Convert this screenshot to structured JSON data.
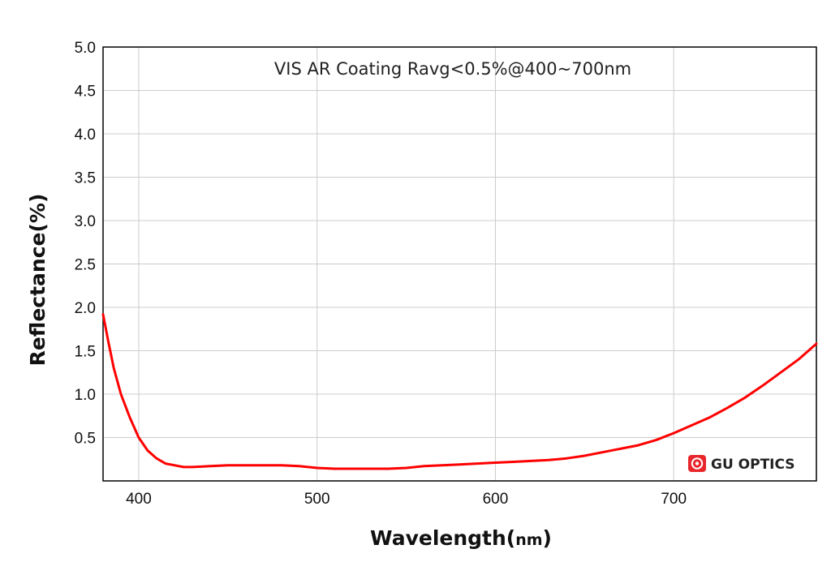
{
  "chart_data": {
    "type": "line",
    "title": "VIS AR Coating Ravg<0.5%@400~700nm",
    "xlabel": "Wavelength(",
    "xlabel_unit": "nm",
    "xlabel_close": ")",
    "ylabel": "Reflectance(%)",
    "xlim": [
      380,
      780
    ],
    "ylim": [
      0,
      5
    ],
    "xticks": [
      400,
      500,
      600,
      700
    ],
    "yticks": [
      0.5,
      1.0,
      1.5,
      2.0,
      2.5,
      3.0,
      3.5,
      4.0,
      4.5,
      5.0
    ],
    "ytick_labels": [
      "0.5",
      "1.0",
      "1.5",
      "2.0",
      "2.5",
      "3.0",
      "3.5",
      "4.0",
      "4.5",
      "5.0"
    ],
    "grid": true,
    "series": [
      {
        "color": "#ff0000",
        "x": [
          380,
          383,
          386,
          390,
          395,
          400,
          405,
          410,
          415,
          420,
          425,
          430,
          440,
          450,
          460,
          470,
          480,
          490,
          500,
          510,
          520,
          530,
          540,
          550,
          560,
          570,
          580,
          590,
          600,
          610,
          620,
          630,
          640,
          650,
          660,
          670,
          680,
          690,
          700,
          710,
          720,
          730,
          740,
          750,
          760,
          770,
          780
        ],
        "y": [
          1.92,
          1.6,
          1.3,
          1.0,
          0.73,
          0.5,
          0.35,
          0.26,
          0.2,
          0.18,
          0.16,
          0.16,
          0.17,
          0.18,
          0.18,
          0.18,
          0.18,
          0.17,
          0.15,
          0.14,
          0.14,
          0.14,
          0.14,
          0.15,
          0.17,
          0.18,
          0.19,
          0.2,
          0.21,
          0.22,
          0.23,
          0.24,
          0.26,
          0.29,
          0.33,
          0.37,
          0.41,
          0.47,
          0.55,
          0.64,
          0.73,
          0.84,
          0.96,
          1.1,
          1.25,
          1.4,
          1.58
        ]
      }
    ]
  },
  "brand": {
    "logo_icon": "gu-optics-logo-icon",
    "name": "GU OPTICS",
    "logo_color": "#e8262b"
  }
}
